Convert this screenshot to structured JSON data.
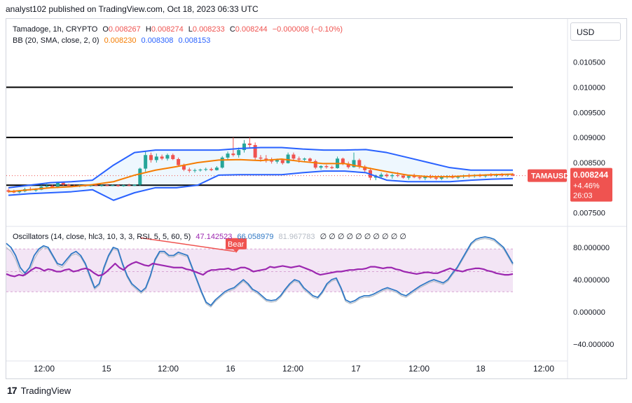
{
  "header": {
    "published": "analyst102 published on TradingView.com, Oct 18, 2023 06:33 UTC"
  },
  "legend_main": {
    "symbol": "Tamadoge, 1h, CRYPTO",
    "o_label": "O",
    "o_value": "0.008267",
    "h_label": "H",
    "h_value": "0.008274",
    "l_label": "L",
    "l_value": "0.008233",
    "c_label": "C",
    "c_value": "0.008244",
    "change": "−0.000008 (−0.10%)"
  },
  "legend_bb": {
    "label": "BB (20, SMA, close, 2, 0)",
    "basis": "0.008230",
    "upper": "0.008308",
    "lower": "0.008153"
  },
  "legend_osc": {
    "label": "Oscillators (14, close, hlc3, 10, 3, 3, RSI, 5, 5, 60, 5)",
    "v1": "47.142523",
    "v2": "66.058979",
    "v3": "81.967783",
    "zeros": "∅ ∅ ∅ ∅ ∅ ∅ ∅ ∅ ∅ ∅"
  },
  "currency": "USD",
  "price_badge": {
    "symbol": "TAMAUSD",
    "price": "0.008244",
    "change": "+4.46%",
    "countdown": "26:03"
  },
  "bear_label": "Bear",
  "footer": {
    "brand": "TradingView"
  },
  "colors": {
    "up": "#26a69a",
    "down": "#ef5350",
    "bb_band": "#2962ff",
    "bb_basis": "#f57c00",
    "rsi": "#9c27b0",
    "stoch_k": "#3179c5",
    "stoch_d": "#b6bcc6",
    "bear": "#ef5350",
    "level": "#000000",
    "osc_band": "#f3e5f5"
  },
  "chart_data": [
    {
      "type": "candlestick",
      "title": "Tamadoge, 1h, CRYPTO",
      "x_ticks": [
        "12:00",
        "15",
        "12:00",
        "16",
        "12:00",
        "17",
        "12:00",
        "18",
        "12:00"
      ],
      "y_ticks": [
        "0.010500",
        "0.010000",
        "0.009500",
        "0.009000",
        "0.008500",
        "0.007500"
      ],
      "ylim": [
        0.0073,
        0.0109
      ],
      "horizontal_levels": [
        0.01,
        0.009,
        0.00805
      ],
      "candles": [
        [
          0.00795,
          0.00798,
          0.0079,
          0.00792
        ],
        [
          0.00792,
          0.00796,
          0.00789,
          0.00791
        ],
        [
          0.00791,
          0.00795,
          0.00789,
          0.00793
        ],
        [
          0.00793,
          0.008,
          0.00791,
          0.00797
        ],
        [
          0.00797,
          0.00801,
          0.00794,
          0.00795
        ],
        [
          0.00795,
          0.00799,
          0.00792,
          0.00796
        ],
        [
          0.00796,
          0.00805,
          0.00795,
          0.00802
        ],
        [
          0.00802,
          0.00808,
          0.008,
          0.00804
        ],
        [
          0.00804,
          0.00806,
          0.00799,
          0.00801
        ],
        [
          0.00801,
          0.00812,
          0.00799,
          0.0081
        ],
        [
          0.0081,
          0.00812,
          0.00804,
          0.00806
        ],
        [
          0.00806,
          0.00808,
          0.00802,
          0.00804
        ],
        [
          0.00804,
          0.00807,
          0.00802,
          0.00803
        ],
        [
          0.00803,
          0.00807,
          0.00801,
          0.00805
        ],
        [
          0.00805,
          0.00806,
          0.00802,
          0.00803
        ],
        [
          0.00803,
          0.00806,
          0.00802,
          0.00805
        ],
        [
          0.00805,
          0.00807,
          0.00803,
          0.00804
        ],
        [
          0.00804,
          0.00806,
          0.00802,
          0.00805
        ],
        [
          0.00805,
          0.00807,
          0.00803,
          0.00804
        ],
        [
          0.00804,
          0.00806,
          0.00803,
          0.00805
        ],
        [
          0.00805,
          0.00806,
          0.00802,
          0.00803
        ],
        [
          0.00803,
          0.00806,
          0.00802,
          0.00805
        ],
        [
          0.00805,
          0.00808,
          0.00803,
          0.00804
        ],
        [
          0.00804,
          0.00807,
          0.00803,
          0.00806
        ],
        [
          0.00806,
          0.0084,
          0.00804,
          0.00838
        ],
        [
          0.00838,
          0.00872,
          0.00832,
          0.00865
        ],
        [
          0.00865,
          0.0087,
          0.0085,
          0.00855
        ],
        [
          0.00855,
          0.00868,
          0.0085,
          0.00862
        ],
        [
          0.00862,
          0.00866,
          0.00855,
          0.00858
        ],
        [
          0.00858,
          0.00868,
          0.00854,
          0.00865
        ],
        [
          0.00865,
          0.00868,
          0.00855,
          0.00857
        ],
        [
          0.00857,
          0.0086,
          0.00842,
          0.00845
        ],
        [
          0.00845,
          0.00848,
          0.00833,
          0.00836
        ],
        [
          0.00836,
          0.0084,
          0.0083,
          0.00834
        ],
        [
          0.00834,
          0.00838,
          0.0083,
          0.00835
        ],
        [
          0.00835,
          0.00838,
          0.00832,
          0.00836
        ],
        [
          0.00836,
          0.0084,
          0.00833,
          0.00837
        ],
        [
          0.00837,
          0.0084,
          0.00833,
          0.00835
        ],
        [
          0.00835,
          0.00843,
          0.00834,
          0.0084
        ],
        [
          0.0084,
          0.00863,
          0.00838,
          0.0086
        ],
        [
          0.0086,
          0.00872,
          0.00855,
          0.00868
        ],
        [
          0.00868,
          0.009,
          0.00862,
          0.00865
        ],
        [
          0.00865,
          0.0088,
          0.0086,
          0.00875
        ],
        [
          0.00875,
          0.00895,
          0.0087,
          0.00888
        ],
        [
          0.00888,
          0.009,
          0.00878,
          0.00885
        ],
        [
          0.00885,
          0.0089,
          0.00855,
          0.0086
        ],
        [
          0.0086,
          0.00865,
          0.00852,
          0.00858
        ],
        [
          0.00858,
          0.00865,
          0.0085,
          0.00854
        ],
        [
          0.00854,
          0.0086,
          0.00848,
          0.00852
        ],
        [
          0.00852,
          0.00858,
          0.00848,
          0.00855
        ],
        [
          0.00855,
          0.00857,
          0.00846,
          0.00849
        ],
        [
          0.00849,
          0.0087,
          0.00848,
          0.00866
        ],
        [
          0.00866,
          0.0087,
          0.00855,
          0.00858
        ],
        [
          0.00858,
          0.00862,
          0.0085,
          0.00856
        ],
        [
          0.00856,
          0.0086,
          0.00852,
          0.00858
        ],
        [
          0.00858,
          0.0086,
          0.0085,
          0.00853
        ],
        [
          0.00853,
          0.00856,
          0.00837,
          0.0084
        ],
        [
          0.0084,
          0.00845,
          0.00836,
          0.00843
        ],
        [
          0.00843,
          0.00846,
          0.00838,
          0.00841
        ],
        [
          0.00841,
          0.00844,
          0.00837,
          0.00839
        ],
        [
          0.00839,
          0.00862,
          0.00838,
          0.00858
        ],
        [
          0.00858,
          0.0086,
          0.00845,
          0.00848
        ],
        [
          0.00848,
          0.00852,
          0.00838,
          0.00841
        ],
        [
          0.00841,
          0.0087,
          0.0084,
          0.00855
        ],
        [
          0.00855,
          0.00858,
          0.00838,
          0.00842
        ],
        [
          0.00842,
          0.00845,
          0.0083,
          0.00835
        ],
        [
          0.00835,
          0.0084,
          0.00815,
          0.0082
        ],
        [
          0.0082,
          0.00826,
          0.00815,
          0.00822
        ],
        [
          0.00822,
          0.0083,
          0.00818,
          0.00826
        ],
        [
          0.00826,
          0.00829,
          0.0082,
          0.00823
        ],
        [
          0.00823,
          0.00828,
          0.00818,
          0.00825
        ],
        [
          0.00825,
          0.00831,
          0.00821,
          0.00824
        ],
        [
          0.00824,
          0.00827,
          0.00818,
          0.0082
        ],
        [
          0.0082,
          0.00826,
          0.00816,
          0.00823
        ],
        [
          0.00823,
          0.00828,
          0.00819,
          0.00821
        ],
        [
          0.00821,
          0.00825,
          0.00816,
          0.00819
        ],
        [
          0.00819,
          0.00824,
          0.00815,
          0.00822
        ],
        [
          0.00822,
          0.00826,
          0.00818,
          0.0082
        ],
        [
          0.0082,
          0.00823,
          0.00815,
          0.00818
        ],
        [
          0.00818,
          0.00824,
          0.00815,
          0.00821
        ],
        [
          0.00821,
          0.00825,
          0.00818,
          0.00823
        ],
        [
          0.00823,
          0.00826,
          0.00818,
          0.0082
        ],
        [
          0.0082,
          0.00824,
          0.00817,
          0.00822
        ],
        [
          0.00822,
          0.00826,
          0.00819,
          0.00824
        ],
        [
          0.00824,
          0.00828,
          0.0082,
          0.00823
        ],
        [
          0.00823,
          0.00827,
          0.0082,
          0.00825
        ],
        [
          0.00825,
          0.00828,
          0.00821,
          0.00823
        ],
        [
          0.00823,
          0.00827,
          0.0082,
          0.00826
        ],
        [
          0.00826,
          0.00829,
          0.00822,
          0.00824
        ],
        [
          0.00824,
          0.00828,
          0.00821,
          0.00826
        ],
        [
          0.00826,
          0.00829,
          0.00822,
          0.00825
        ],
        [
          0.00825,
          0.00828,
          0.00822,
          0.00827
        ],
        [
          0.00827,
          0.00829,
          0.00823,
          0.00824
        ]
      ],
      "bb_upper": [
        0.008,
        0.00805,
        0.0081,
        0.00812,
        0.00815,
        0.00845,
        0.0087,
        0.00875,
        0.00875,
        0.00875,
        0.00875,
        0.00878,
        0.0088,
        0.0088,
        0.00877,
        0.00875,
        0.00875,
        0.00876,
        0.0087,
        0.0086,
        0.0085,
        0.0084,
        0.00835,
        0.00835,
        0.00835
      ],
      "bb_basis": [
        0.00792,
        0.00796,
        0.008,
        0.00802,
        0.00806,
        0.00812,
        0.00825,
        0.00835,
        0.00842,
        0.0085,
        0.00855,
        0.00856,
        0.00854,
        0.00857,
        0.00852,
        0.00848,
        0.00848,
        0.0084,
        0.00832,
        0.00825,
        0.00822,
        0.00822,
        0.00824,
        0.00826,
        0.00827
      ],
      "bb_lower": [
        0.00785,
        0.00788,
        0.0079,
        0.00792,
        0.00796,
        0.00775,
        0.0079,
        0.008,
        0.008,
        0.00805,
        0.00825,
        0.00826,
        0.00826,
        0.00826,
        0.0083,
        0.00833,
        0.00833,
        0.0083,
        0.00815,
        0.00812,
        0.00812,
        0.00812,
        0.00815,
        0.00817,
        0.00818
      ]
    },
    {
      "type": "line",
      "title": "Oscillators (14, close, hlc3, 10, 3, 3, RSI, 5, 5, 60, 5)",
      "y_ticks": [
        "80.000000",
        "40.000000",
        "0.000000",
        "−40.000000"
      ],
      "ylim": [
        -60,
        100
      ],
      "band": [
        25,
        78
      ],
      "levels": [
        78,
        50,
        25
      ],
      "series": [
        {
          "values": [
            47,
            45,
            44,
            46,
            45,
            48,
            52,
            55,
            54,
            51,
            53,
            52,
            50,
            50,
            52,
            53,
            50,
            51,
            53,
            54,
            52,
            48,
            45,
            46,
            50,
            55,
            60,
            55,
            52,
            57,
            60,
            62,
            60,
            58,
            57,
            60,
            59,
            58,
            57,
            56,
            55,
            55,
            55,
            53,
            52,
            50,
            48,
            46,
            50,
            52,
            52,
            53,
            53,
            54,
            52,
            53,
            55,
            55,
            53,
            50,
            51,
            52,
            53,
            56,
            55,
            56,
            57,
            56,
            55,
            56,
            57,
            55,
            53,
            51,
            48,
            46,
            47,
            48,
            49,
            50,
            50,
            51,
            52,
            52,
            53,
            53,
            54,
            56,
            56,
            55,
            54,
            55,
            55,
            53,
            52,
            50,
            49,
            48,
            47,
            48,
            49,
            49,
            48,
            48,
            50,
            52,
            54,
            52,
            51,
            50,
            52,
            53,
            54,
            54,
            53,
            51,
            50,
            48,
            47,
            46,
            46,
            47
          ]
        },
        {
          "values": [
            85,
            80,
            70,
            55,
            48,
            55,
            70,
            78,
            82,
            80,
            70,
            60,
            58,
            65,
            72,
            75,
            70,
            60,
            45,
            30,
            35,
            55,
            70,
            80,
            78,
            60,
            45,
            35,
            30,
            25,
            30,
            45,
            65,
            75,
            75,
            70,
            70,
            74,
            72,
            70,
            55,
            40,
            25,
            12,
            8,
            15,
            20,
            25,
            28,
            30,
            35,
            40,
            35,
            28,
            25,
            20,
            15,
            14,
            15,
            20,
            28,
            35,
            40,
            38,
            30,
            25,
            20,
            18,
            25,
            35,
            40,
            42,
            30,
            15,
            12,
            14,
            18,
            20,
            20,
            22,
            25,
            28,
            30,
            28,
            26,
            22,
            20,
            24,
            28,
            32,
            35,
            38,
            40,
            38,
            36,
            40,
            48,
            55,
            65,
            75,
            85,
            90,
            92,
            93,
            92,
            90,
            85,
            80,
            70,
            60
          ]
        },
        {
          "values": [
            80,
            75,
            65,
            50,
            45,
            50,
            65,
            75,
            80,
            78,
            68,
            58,
            55,
            62,
            70,
            72,
            68,
            58,
            42,
            28,
            33,
            52,
            68,
            78,
            76,
            58,
            43,
            33,
            28,
            23,
            28,
            43,
            63,
            73,
            73,
            68,
            68,
            72,
            70,
            68,
            53,
            38,
            23,
            10,
            6,
            13,
            18,
            23,
            26,
            28,
            33,
            38,
            33,
            26,
            23,
            18,
            13,
            12,
            13,
            18,
            26,
            33,
            38,
            36,
            28,
            23,
            18,
            16,
            23,
            33,
            38,
            40,
            28,
            13,
            10,
            12,
            16,
            18,
            18,
            20,
            23,
            26,
            28,
            26,
            24,
            20,
            18,
            22,
            26,
            30,
            33,
            36,
            38,
            36,
            34,
            38,
            46,
            53,
            63,
            73,
            83,
            88,
            90,
            91,
            90,
            88,
            83,
            78,
            68,
            58
          ]
        }
      ],
      "annotation": "Bear"
    }
  ]
}
